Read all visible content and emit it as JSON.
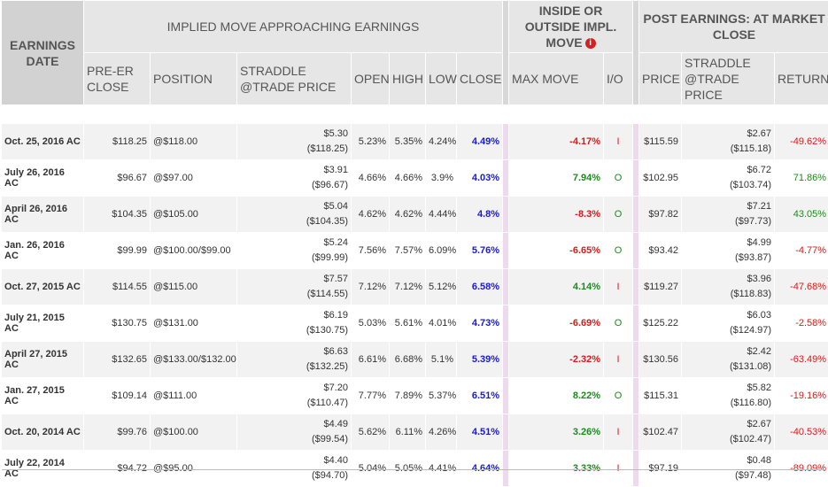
{
  "headers": {
    "earnings_date": "EARNINGS DATE",
    "group_implied": "IMPLIED MOVE APPROACHING EARNINGS",
    "group_inside": "INSIDE OR OUTSIDE IMPL. MOVE",
    "group_post": "POST EARNINGS: AT MARKET CLOSE",
    "pre_er_close": "PRE-ER CLOSE",
    "position": "POSITION",
    "straddle": "STRADDLE @TRADE PRICE",
    "open": "OPEN",
    "high": "HIGH",
    "low": "LOW",
    "close": "CLOSE",
    "max_move": "MAX MOVE",
    "io": "I/O",
    "price": "PRICE",
    "straddle_post": "STRADDLE @TRADE PRICE",
    "return": "RETURN"
  },
  "icons": {
    "info": "info-icon"
  },
  "colors": {
    "negative": "#d91a1a",
    "positive": "#1a8c1a",
    "close": "#1a1ad6",
    "separator": "#efd9ec"
  },
  "rows": [
    {
      "date": "Oct. 25, 2016 AC",
      "pre": "$118.25",
      "pos": "@$118.00",
      "str1": "$5.30",
      "str2": "($118.25)",
      "open": "5.23%",
      "high": "5.35%",
      "low": "4.24%",
      "close": "4.49%",
      "mm": "-4.17%",
      "mm_sign": "neg",
      "io": "I",
      "price": "$115.59",
      "ps1": "$2.67",
      "ps2": "($115.18)",
      "ret": "-49.62%",
      "ret_sign": "neg"
    },
    {
      "date": "July 26, 2016 AC",
      "pre": "$96.67",
      "pos": "@$97.00",
      "str1": "$3.91",
      "str2": "($96.67)",
      "open": "4.66%",
      "high": "4.66%",
      "low": "3.9%",
      "close": "4.03%",
      "mm": "7.94%",
      "mm_sign": "pos",
      "io": "O",
      "price": "$102.95",
      "ps1": "$6.72",
      "ps2": "($103.74)",
      "ret": "71.86%",
      "ret_sign": "pos"
    },
    {
      "date": "April 26, 2016 AC",
      "pre": "$104.35",
      "pos": "@$105.00",
      "str1": "$5.04",
      "str2": "($104.35)",
      "open": "4.62%",
      "high": "4.62%",
      "low": "4.44%",
      "close": "4.8%",
      "mm": "-8.3%",
      "mm_sign": "neg",
      "io": "O",
      "price": "$97.82",
      "ps1": "$7.21",
      "ps2": "($97.73)",
      "ret": "43.05%",
      "ret_sign": "pos"
    },
    {
      "date": "Jan. 26, 2016 AC",
      "pre": "$99.99",
      "pos": "@$100.00/$99.00",
      "str1": "$5.24",
      "str2": "($99.99)",
      "open": "7.56%",
      "high": "7.57%",
      "low": "6.09%",
      "close": "5.76%",
      "mm": "-6.65%",
      "mm_sign": "neg",
      "io": "O",
      "price": "$93.42",
      "ps1": "$4.99",
      "ps2": "($93.87)",
      "ret": "-4.77%",
      "ret_sign": "neg"
    },
    {
      "date": "Oct. 27, 2015 AC",
      "pre": "$114.55",
      "pos": "@$115.00",
      "str1": "$7.57",
      "str2": "($114.55)",
      "open": "7.12%",
      "high": "7.12%",
      "low": "5.12%",
      "close": "6.58%",
      "mm": "4.14%",
      "mm_sign": "pos",
      "io": "I",
      "price": "$119.27",
      "ps1": "$3.96",
      "ps2": "($118.83)",
      "ret": "-47.68%",
      "ret_sign": "neg"
    },
    {
      "date": "July 21, 2015 AC",
      "pre": "$130.75",
      "pos": "@$131.00",
      "str1": "$6.19",
      "str2": "($130.75)",
      "open": "5.03%",
      "high": "5.61%",
      "low": "4.01%",
      "close": "4.73%",
      "mm": "-6.69%",
      "mm_sign": "neg",
      "io": "O",
      "price": "$125.22",
      "ps1": "$6.03",
      "ps2": "($124.97)",
      "ret": "-2.58%",
      "ret_sign": "neg"
    },
    {
      "date": "April 27, 2015 AC",
      "pre": "$132.65",
      "pos": "@$133.00/$132.00",
      "str1": "$6.63",
      "str2": "($132.25)",
      "open": "6.61%",
      "high": "6.68%",
      "low": "5.1%",
      "close": "5.39%",
      "mm": "-2.32%",
      "mm_sign": "neg",
      "io": "I",
      "price": "$130.56",
      "ps1": "$2.42",
      "ps2": "($131.08)",
      "ret": "-63.49%",
      "ret_sign": "neg"
    },
    {
      "date": "Jan. 27, 2015 AC",
      "pre": "$109.14",
      "pos": "@$111.00",
      "str1": "$7.20",
      "str2": "($110.47)",
      "open": "7.77%",
      "high": "7.89%",
      "low": "5.37%",
      "close": "6.51%",
      "mm": "8.22%",
      "mm_sign": "pos",
      "io": "O",
      "price": "$115.31",
      "ps1": "$5.82",
      "ps2": "($116.80)",
      "ret": "-19.16%",
      "ret_sign": "neg"
    },
    {
      "date": "Oct. 20, 2014 AC",
      "pre": "$99.76",
      "pos": "@$100.00",
      "str1": "$4.49",
      "str2": "($99.54)",
      "open": "5.62%",
      "high": "6.11%",
      "low": "4.26%",
      "close": "4.51%",
      "mm": "3.26%",
      "mm_sign": "pos",
      "io": "I",
      "price": "$102.47",
      "ps1": "$2.67",
      "ps2": "($102.47)",
      "ret": "-40.53%",
      "ret_sign": "neg"
    },
    {
      "date": "July 22, 2014 AC",
      "pre": "$94.72",
      "pos": "@$95.00",
      "str1": "$4.40",
      "str2": "($94.70)",
      "open": "5.04%",
      "high": "5.05%",
      "low": "4.41%",
      "close": "4.64%",
      "mm": "3.33%",
      "mm_sign": "pos",
      "io": "I",
      "price": "$97.19",
      "ps1": "$0.48",
      "ps2": "($97.48)",
      "ret": "-89.09%",
      "ret_sign": "neg"
    }
  ]
}
